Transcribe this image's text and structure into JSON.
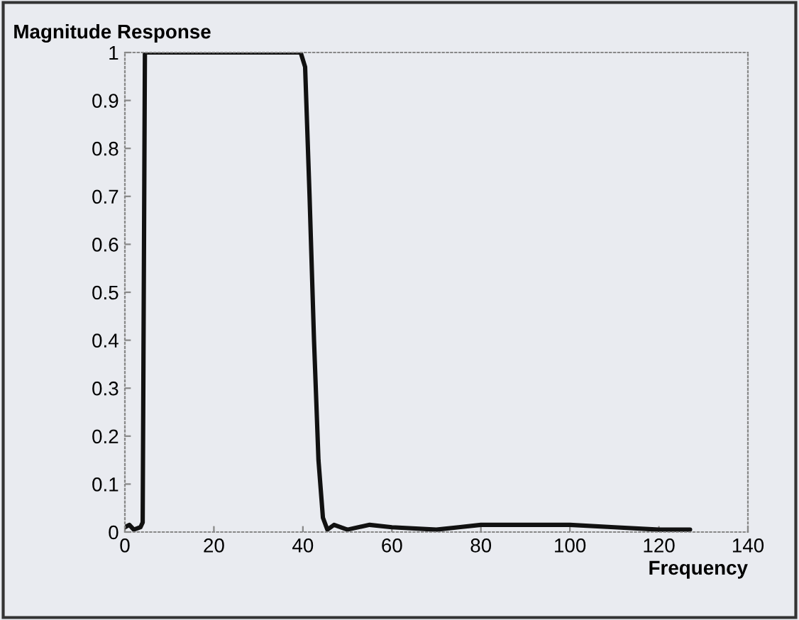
{
  "chart_data": {
    "type": "line",
    "ylabel": "Magnitude Response",
    "xlabel": "Frequency",
    "x": [
      0,
      1,
      2,
      3.5,
      4,
      4.5,
      39.5,
      40.5,
      41.5,
      42.5,
      43.5,
      44.5,
      45.5,
      47,
      50,
      55,
      60,
      70,
      75,
      80,
      100,
      110,
      120,
      127
    ],
    "series": [
      {
        "color": "#111111",
        "values": [
          0.01,
          0.015,
          0.005,
          0.01,
          0.02,
          1,
          1,
          0.97,
          0.7,
          0.4,
          0.15,
          0.03,
          0.005,
          0.015,
          0.005,
          0.015,
          0.01,
          0.005,
          0.01,
          0.015,
          0.015,
          0.01,
          0.005,
          0.005
        ]
      }
    ],
    "xlim": [
      0,
      140
    ],
    "xticks": [
      0,
      20,
      40,
      60,
      80,
      100,
      120,
      140
    ],
    "ylim": [
      0,
      1
    ],
    "yticks": [
      0,
      0.1,
      0.2,
      0.3,
      0.4,
      0.5,
      0.6,
      0.7,
      0.8,
      0.9,
      1
    ],
    "grid": false,
    "legend": false,
    "marker": "none",
    "line_style": "solid"
  }
}
